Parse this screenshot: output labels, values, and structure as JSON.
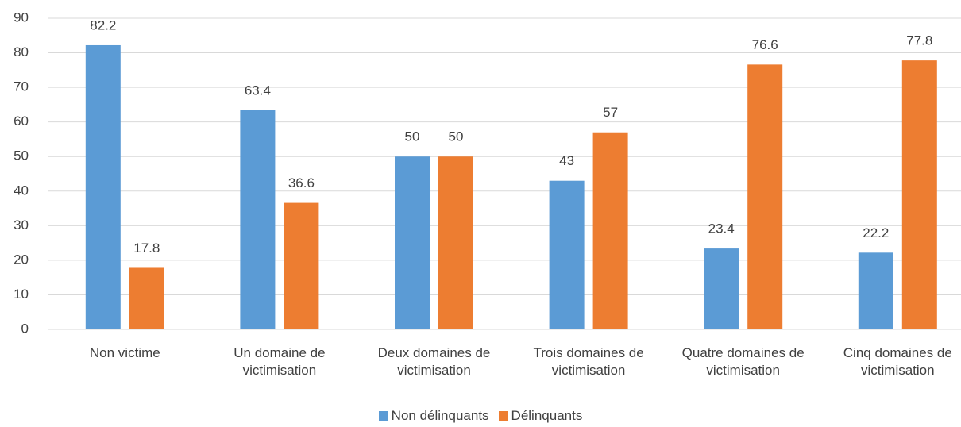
{
  "chart_data": {
    "type": "bar",
    "categories": [
      "Non victime",
      "Un domaine de victimisation",
      "Deux domaines de victimisation",
      "Trois domaines de victimisation",
      "Quatre domaines de victimisation",
      "Cinq domaines de victimisation"
    ],
    "series": [
      {
        "name": "Non délinquants",
        "color": "#5b9bd5",
        "values": [
          82.2,
          63.4,
          50,
          43,
          23.4,
          22.2
        ]
      },
      {
        "name": "Délinquants",
        "color": "#ed7d31",
        "values": [
          17.8,
          36.6,
          50,
          57,
          76.6,
          77.8
        ]
      }
    ],
    "ylim": [
      0,
      90
    ],
    "yticks": [
      0,
      10,
      20,
      30,
      40,
      50,
      60,
      70,
      80,
      90
    ],
    "grid": true,
    "legend": "bottom"
  }
}
